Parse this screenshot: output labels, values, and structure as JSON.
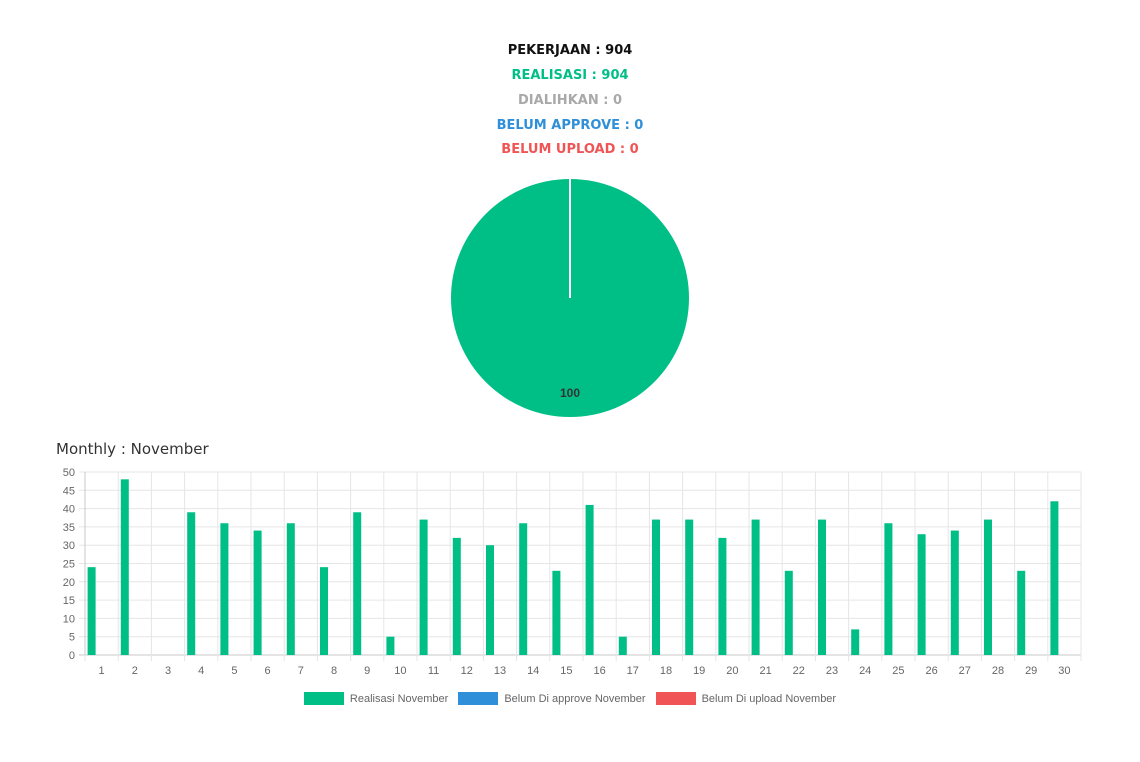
{
  "summary": {
    "pekerjaan": "PEKERJAAN : 904",
    "realisasi": "REALISASI : 904",
    "dialihkan": "DIALIHKAN : 0",
    "belum_approve": "BELUM APPROVE : 0",
    "belum_upload": "BELUM UPLOAD : 0"
  },
  "colors": {
    "black": "#111111",
    "green": "#00bf86",
    "gray": "#a9a9a9",
    "blue": "#2f8fd8",
    "red": "#f05454"
  },
  "monthly_title": "Monthly : November",
  "chart_data": [
    {
      "type": "pie",
      "slices": [
        {
          "name": "Realisasi",
          "value": 100,
          "color": "#00bf86"
        }
      ],
      "data_label": "100"
    },
    {
      "type": "bar",
      "categories": [
        "1",
        "2",
        "3",
        "4",
        "5",
        "6",
        "7",
        "8",
        "9",
        "10",
        "11",
        "12",
        "13",
        "14",
        "15",
        "16",
        "17",
        "18",
        "19",
        "20",
        "21",
        "22",
        "23",
        "24",
        "25",
        "26",
        "27",
        "28",
        "29",
        "30"
      ],
      "series": [
        {
          "name": "Realisasi November",
          "color": "#00bf86",
          "values": [
            24,
            48,
            0,
            39,
            36,
            34,
            36,
            24,
            39,
            5,
            37,
            32,
            30,
            36,
            23,
            41,
            5,
            37,
            37,
            32,
            37,
            23,
            37,
            7,
            36,
            33,
            34,
            37,
            23,
            42
          ]
        },
        {
          "name": "Belum Di approve November",
          "color": "#2f8fd8",
          "values": [
            0,
            0,
            0,
            0,
            0,
            0,
            0,
            0,
            0,
            0,
            0,
            0,
            0,
            0,
            0,
            0,
            0,
            0,
            0,
            0,
            0,
            0,
            0,
            0,
            0,
            0,
            0,
            0,
            0,
            0
          ]
        },
        {
          "name": "Belum Di upload November",
          "color": "#f05454",
          "values": [
            0,
            0,
            0,
            0,
            0,
            0,
            0,
            0,
            0,
            0,
            0,
            0,
            0,
            0,
            0,
            0,
            0,
            0,
            0,
            0,
            0,
            0,
            0,
            0,
            0,
            0,
            0,
            0,
            0,
            0
          ]
        }
      ],
      "yticks": [
        "0",
        "5",
        "10",
        "15",
        "20",
        "25",
        "30",
        "35",
        "40",
        "45",
        "50"
      ],
      "ylim": [
        0,
        50
      ],
      "grid": true,
      "legend_position": "bottom"
    }
  ]
}
